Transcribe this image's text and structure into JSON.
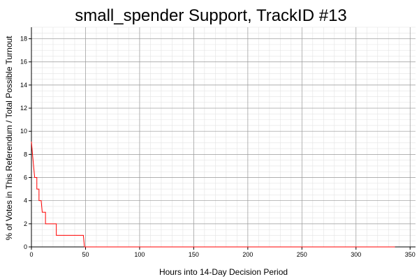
{
  "chart_data": {
    "type": "line",
    "title": "small_spender Support, TrackID #13",
    "xlabel": "Hours into 14-Day Decision Period",
    "ylabel": "% of Votes in This Referendum / Total Possible Turnout",
    "xlim": [
      0,
      355
    ],
    "ylim": [
      0,
      19
    ],
    "x_ticks": [
      0,
      50,
      100,
      150,
      200,
      250,
      300,
      350
    ],
    "y_ticks": [
      0,
      2,
      4,
      6,
      8,
      10,
      12,
      14,
      16,
      18
    ],
    "grid": true,
    "series": [
      {
        "color": "#ff0000",
        "points": [
          [
            0,
            9.1
          ],
          [
            1,
            8.0
          ],
          [
            2,
            7.0
          ],
          [
            3,
            6.0
          ],
          [
            5,
            6.0
          ],
          [
            5,
            5.0
          ],
          [
            7,
            5.0
          ],
          [
            7,
            4.0
          ],
          [
            9,
            4.0
          ],
          [
            10,
            3.0
          ],
          [
            13,
            3.0
          ],
          [
            13,
            2.0
          ],
          [
            23,
            2.0
          ],
          [
            23,
            1.0
          ],
          [
            48,
            1.0
          ],
          [
            49,
            0.0
          ],
          [
            336,
            0.0
          ]
        ]
      }
    ]
  }
}
